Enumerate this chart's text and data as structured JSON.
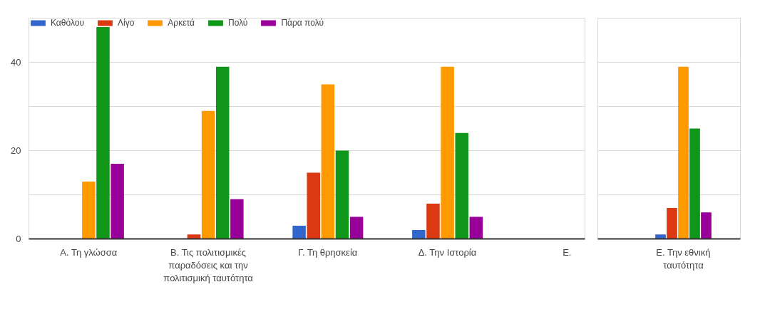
{
  "chart_data": [
    {
      "type": "bar",
      "categories": [
        "Α. Τη γλώσσα",
        "Β. Τις πολιτισμικές παραδόσεις και την πολιτισμική ταυτότητα",
        "Γ. Τη θρησκεία",
        "Δ. Την Ιστορία",
        "Ε."
      ],
      "series": [
        {
          "name": "Καθόλου",
          "color": "#3366cc",
          "values": [
            0,
            0,
            3,
            2,
            null
          ]
        },
        {
          "name": "Λίγο",
          "color": "#dc3912",
          "values": [
            0,
            1,
            15,
            8,
            null
          ]
        },
        {
          "name": "Αρκετά",
          "color": "#ff9900",
          "values": [
            13,
            29,
            35,
            39,
            null
          ]
        },
        {
          "name": "Πολύ",
          "color": "#109618",
          "values": [
            48,
            39,
            20,
            24,
            null
          ]
        },
        {
          "name": "Πάρα πολύ",
          "color": "#990099",
          "values": [
            17,
            9,
            5,
            5,
            null
          ]
        }
      ],
      "ylim": [
        0,
        50
      ],
      "yticks": [
        0,
        {
          "value": 10,
          "label": null
        },
        20,
        {
          "value": 30,
          "label": null
        },
        40,
        {
          "value": 50,
          "label": null
        }
      ],
      "grid": "y",
      "legend": "top left"
    },
    {
      "type": "bar",
      "categories": [
        "Ε. Την εθνική ταυτότητα"
      ],
      "series": [
        {
          "color": "#3366cc",
          "values": [
            1
          ]
        },
        {
          "color": "#dc3912",
          "values": [
            7
          ]
        },
        {
          "color": "#ff9900",
          "values": [
            39
          ]
        },
        {
          "color": "#109618",
          "values": [
            25
          ]
        },
        {
          "color": "#990099",
          "values": [
            6
          ]
        }
      ],
      "ylim": [
        0,
        50
      ],
      "yticks": [
        0,
        {
          "value": 10,
          "label": null
        },
        {
          "value": 20,
          "label": null
        },
        {
          "value": 30,
          "label": null
        },
        {
          "value": 40,
          "label": null
        },
        {
          "value": 50,
          "label": null
        }
      ],
      "grid": "y",
      "tick_labels": "x"
    }
  ]
}
